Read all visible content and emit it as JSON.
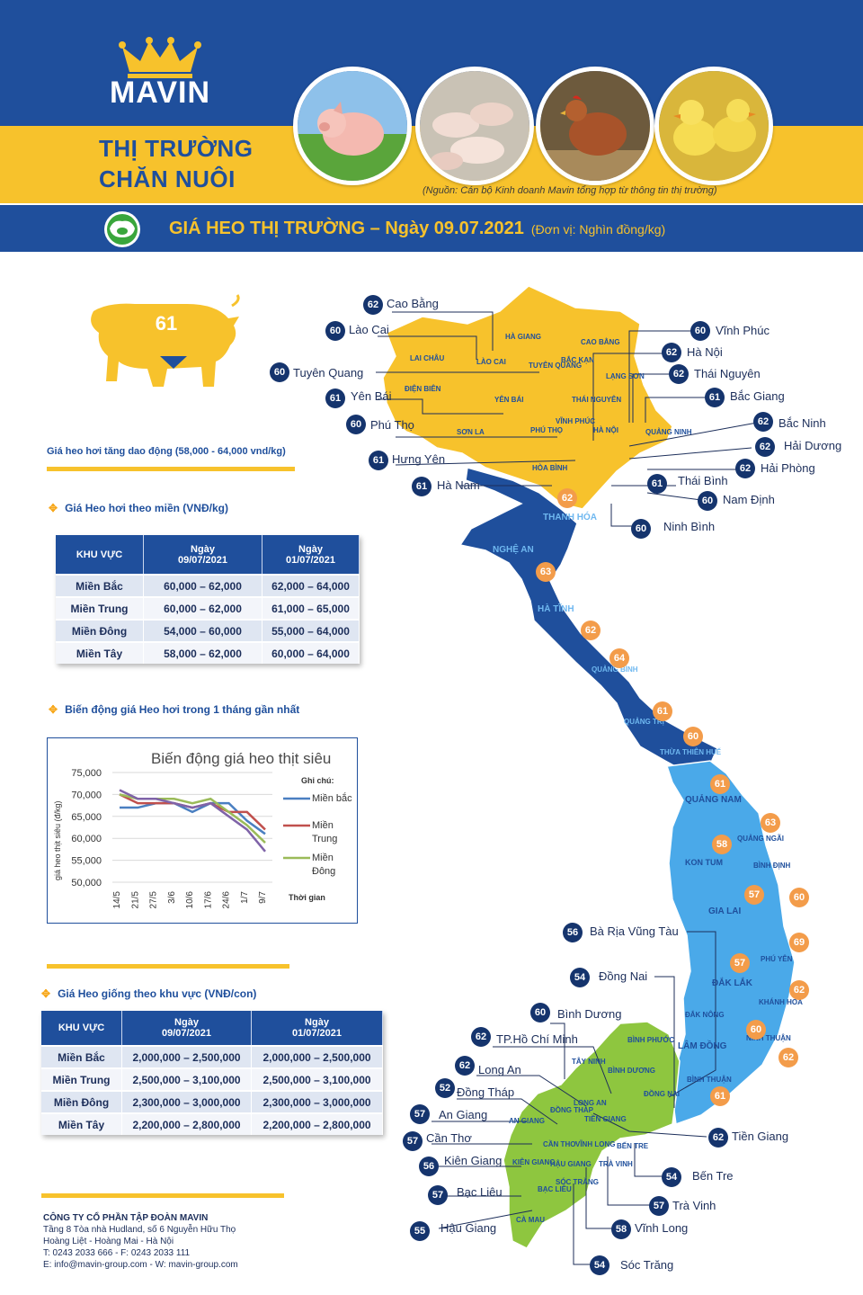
{
  "brand": {
    "name": "MAVIN"
  },
  "header": {
    "title_line1": "THỊ TRƯỜNG",
    "title_line2": "CHĂN NUÔI",
    "source_note": "(Nguồn: Cán bộ Kinh doanh Mavin tổng hợp từ thông tin thị trường)",
    "photos": [
      "pig-photo",
      "piglets-photo",
      "chicken-photo",
      "ducklings-photo"
    ]
  },
  "banner": {
    "title": "GIÁ HEO THỊ TRƯỜNG – Ngày 09.07.2021",
    "unit": "(Đơn vị: Nghìn đồng/kg)"
  },
  "summary": {
    "pig_value": "61",
    "note": "Giá heo hơi tăng dao động (58,000 - 64,000 vnd/kg)"
  },
  "live_price": {
    "heading": "Giá Heo hơi theo miền (VNĐ/kg)",
    "columns": [
      "KHU VỰC",
      "Ngày\n09/07/2021",
      "Ngày\n01/07/2021"
    ],
    "rows": [
      [
        "Miền Bắc",
        "60,000 – 62,000",
        "62,000 – 64,000"
      ],
      [
        "Miền Trung",
        "60,000 – 62,000",
        "61,000 – 65,000"
      ],
      [
        "Miền Đông",
        "54,000 – 60,000",
        "55,000 – 64,000"
      ],
      [
        "Miền Tây",
        "58,000 – 62,000",
        "60,000 – 64,000"
      ]
    ]
  },
  "trend": {
    "heading": "Biến động giá Heo hơi trong 1 tháng gần nhất"
  },
  "chart_data": {
    "type": "line",
    "title": "Biến động giá heo thịt siêu",
    "ylabel": "giá heo thịt siêu (đ/kg)",
    "xlabel": "Thời gian",
    "legend_title": "Ghi chú:",
    "legend_position": "right",
    "ylim": [
      50000,
      75000
    ],
    "yticks": [
      "75,000",
      "70,000",
      "65,000",
      "60,000",
      "55,000",
      "50,000"
    ],
    "categories": [
      "14/5",
      "21/5",
      "27/5",
      "3/6",
      "10/6",
      "17/6",
      "24/6",
      "1/7",
      "9/7"
    ],
    "series": [
      {
        "name": "Miền bắc",
        "color": "#4a7fc1",
        "values": [
          67000,
          67000,
          68000,
          68000,
          66000,
          68000,
          68000,
          64000,
          61000
        ]
      },
      {
        "name": "Miền Trung",
        "color": "#c0504d",
        "values": [
          70000,
          68000,
          68000,
          68000,
          67000,
          68000,
          66000,
          66000,
          62000
        ]
      },
      {
        "name": "Miền Đông",
        "color": "#9bbb59",
        "values": [
          70000,
          69000,
          69000,
          69000,
          68000,
          69000,
          66000,
          63000,
          59000
        ]
      },
      {
        "name": "",
        "color": "#7f63a8",
        "values": [
          71000,
          69000,
          69000,
          68000,
          67000,
          68000,
          65000,
          62000,
          57000
        ]
      }
    ]
  },
  "breed_price": {
    "heading": "Giá Heo giống theo khu vực (VNĐ/con)",
    "columns": [
      "KHU VỰC",
      "Ngày\n09/07/2021",
      "Ngày\n01/07/2021"
    ],
    "rows": [
      [
        "Miền Bắc",
        "2,000,000 – 2,500,000",
        "2,000,000 – 2,500,000"
      ],
      [
        "Miền Trung",
        "2,500,000 – 3,100,000",
        "2,500,000 – 3,100,000"
      ],
      [
        "Miền Đông",
        "2,300,000 – 3,000,000",
        "2,300,000 – 3,000,000"
      ],
      [
        "Miền Tây",
        "2,200,000 – 2,800,000",
        "2,200,000 – 2,800,000"
      ]
    ]
  },
  "footer": {
    "company": "CÔNG TY CỔ PHẦN TẬP ĐOÀN MAVIN",
    "address1": "Tầng 8 Tòa nhà Hudland, số 6 Nguyễn Hữu Thọ",
    "address2": "Hoàng Liệt - Hoàng Mai - Hà Nội",
    "phone": "T: 0243 2033 666 - F: 0243 2033 111",
    "web": "E: info@mavin-group.com -  W: mavin-group.com"
  },
  "map": {
    "provinces": [
      {
        "value": "62",
        "name": "Cao Bằng"
      },
      {
        "value": "60",
        "name": "Lào Cai"
      },
      {
        "value": "60",
        "name": "Tuyên Quang"
      },
      {
        "value": "61",
        "name": "Yên Bái"
      },
      {
        "value": "60",
        "name": "Phú Thọ"
      },
      {
        "value": "61",
        "name": "Hưng Yên"
      },
      {
        "value": "61",
        "name": "Hà Nam"
      },
      {
        "value": "60",
        "name": "Vĩnh Phúc"
      },
      {
        "value": "62",
        "name": "Hà Nội"
      },
      {
        "value": "62",
        "name": "Thái Nguyên"
      },
      {
        "value": "61",
        "name": "Bắc Giang"
      },
      {
        "value": "62",
        "name": "Bắc Ninh"
      },
      {
        "value": "62",
        "name": "Hải Dương"
      },
      {
        "value": "62",
        "name": "Hải Phòng"
      },
      {
        "value": "61",
        "name": "Thái Bình"
      },
      {
        "value": "60",
        "name": "Nam Định"
      },
      {
        "value": "60",
        "name": "Ninh Bình"
      },
      {
        "value": "56",
        "name": "Bà Rịa Vũng Tàu"
      },
      {
        "value": "54",
        "name": "Đồng Nai"
      },
      {
        "value": "60",
        "name": "Bình Dương"
      },
      {
        "value": "62",
        "name": "TP.Hồ Chí Minh"
      },
      {
        "value": "62",
        "name": "Long An"
      },
      {
        "value": "52",
        "name": "Đồng Tháp"
      },
      {
        "value": "57",
        "name": "An Giang"
      },
      {
        "value": "57",
        "name": "Cần Thơ"
      },
      {
        "value": "56",
        "name": "Kiên Giang"
      },
      {
        "value": "57",
        "name": "Bạc Liêu"
      },
      {
        "value": "55",
        "name": "Hậu Giang"
      },
      {
        "value": "62",
        "name": "Tiền Giang"
      },
      {
        "value": "54",
        "name": "Bến Tre"
      },
      {
        "value": "57",
        "name": "Trà Vinh"
      },
      {
        "value": "58",
        "name": "Vĩnh Long"
      },
      {
        "value": "54",
        "name": "Sóc Trăng"
      }
    ],
    "central_values": [
      "62",
      "63",
      "62",
      "64",
      "61",
      "60",
      "61",
      "63",
      "58",
      "60",
      "57",
      "69",
      "57",
      "62",
      "60",
      "62",
      "61"
    ],
    "region_labels": {
      "north": [
        "HÀ GIANG",
        "CAO BẰNG",
        "LÀO CAI",
        "TUYÊN QUANG",
        "BẮC KẠN",
        "LAI CHÂU",
        "LẠNG SƠN",
        "ĐIỆN BIÊN",
        "YÊN BÁI",
        "THÁI NGUYÊN",
        "SƠN LA",
        "HÒA BÌNH",
        "QUẢNG NINH",
        "HÀ NỘI",
        "PHÚ THỌ",
        "VĨNH PHÚC"
      ],
      "north_central": [
        "THANH HÓA",
        "NGHỆ AN",
        "HÀ TĨNH",
        "QUẢNG BÌNH",
        "QUẢNG TRỊ",
        "THỪA THIÊN HUẾ"
      ],
      "central": [
        "QUẢNG NAM",
        "QUẢNG NGÃI",
        "KON TUM",
        "BÌNH ĐỊNH",
        "GIA LAI",
        "PHÚ YÊN",
        "ĐẮK LẮK",
        "KHÁNH HÒA",
        "ĐẮK NÔNG",
        "LÂM ĐỒNG",
        "NINH THUẬN",
        "BÌNH THUẬN",
        "BÌNH PHƯỚC"
      ],
      "south": [
        "BÌNH DƯƠNG",
        "ĐỒNG NAI",
        "TÂY NINH",
        "LONG AN",
        "ĐỒNG THÁP",
        "AN GIANG",
        "TIỀN GIANG",
        "CẦN THƠ",
        "VĨNH LONG",
        "BẾN TRE",
        "TRÀ VINH",
        "HẬU GIANG",
        "SÓC TRĂNG",
        "KIÊN GIANG",
        "BẠC LIÊU",
        "CÀ MAU"
      ]
    }
  },
  "colors": {
    "brand_blue": "#1f4f9c",
    "brand_yellow": "#f7c22c",
    "north_region": "#f7c22c",
    "north_central_region": "#1f4f9c",
    "central_region": "#4aa9e9",
    "south_region": "#8ec63f",
    "badge_navy": "#15346d",
    "badge_orange": "#f39c4a"
  }
}
